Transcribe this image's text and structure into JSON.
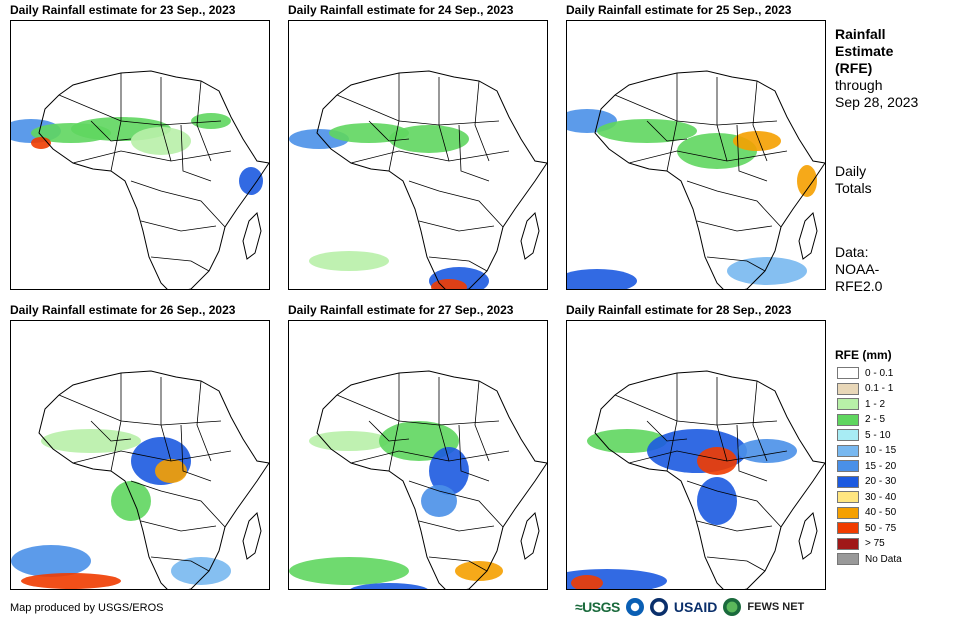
{
  "panels": [
    {
      "title": "Daily Rainfall estimate for 23 Sep., 2023"
    },
    {
      "title": "Daily Rainfall estimate for 24 Sep., 2023"
    },
    {
      "title": "Daily Rainfall estimate for 25 Sep., 2023"
    },
    {
      "title": "Daily Rainfall estimate for 26 Sep., 2023"
    },
    {
      "title": "Daily Rainfall estimate for 27 Sep., 2023"
    },
    {
      "title": "Daily Rainfall estimate for 28 Sep., 2023"
    }
  ],
  "sidebar": {
    "title_line1": "Rainfall",
    "title_line2": "Estimate",
    "title_line3": "(RFE)",
    "through": "through",
    "date": "Sep 28, 2023",
    "daily1": "Daily",
    "daily2": "Totals",
    "data1": "Data:",
    "data2": "NOAA-",
    "data3": "RFE2.0"
  },
  "legend": {
    "title": "RFE (mm)",
    "items": [
      {
        "label": "0 - 0.1",
        "color": "#ffffff"
      },
      {
        "label": "0.1 - 1",
        "color": "#e8d7b8"
      },
      {
        "label": "1 - 2",
        "color": "#b8f0a8"
      },
      {
        "label": "2 - 5",
        "color": "#5fd65f"
      },
      {
        "label": "5 - 10",
        "color": "#a8ecf4"
      },
      {
        "label": "10 - 15",
        "color": "#78b8f0"
      },
      {
        "label": "15 - 20",
        "color": "#4a90e8"
      },
      {
        "label": "20 - 30",
        "color": "#1c5ae0"
      },
      {
        "label": "30 - 40",
        "color": "#ffe680"
      },
      {
        "label": "40 - 50",
        "color": "#f5a000"
      },
      {
        "label": "50 - 75",
        "color": "#f03c00"
      },
      {
        "label": "> 75",
        "color": "#a01818"
      },
      {
        "label": "No Data",
        "color": "#999999"
      }
    ]
  },
  "footer": {
    "credit": "Map produced by USGS/EROS"
  },
  "logos": {
    "usgs": "≈USGS",
    "usaid": "USAID",
    "fews": "FEWS NET"
  }
}
